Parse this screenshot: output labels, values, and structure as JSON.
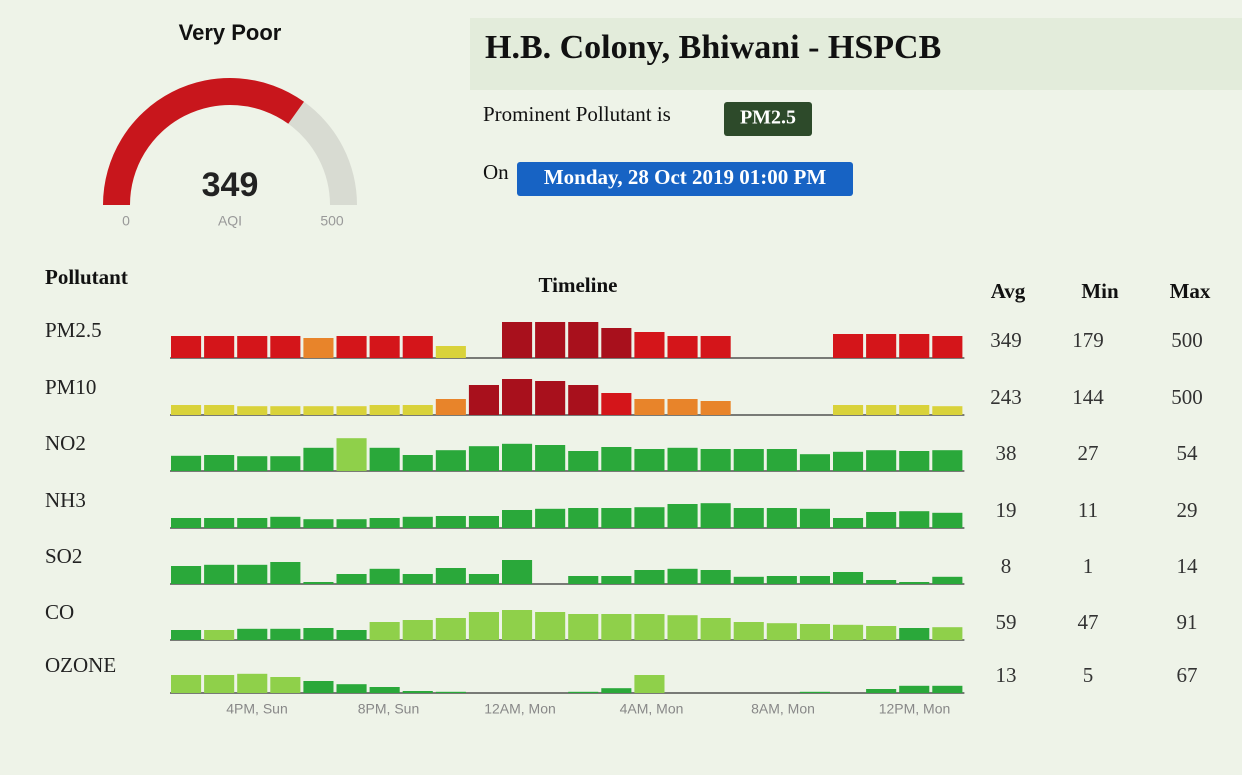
{
  "header": {
    "title": "H.B. Colony, Bhiwani - HSPCB",
    "pollutant_prefix": "Prominent Pollutant is",
    "pollutant": "PM2.5",
    "date_prefix": "On",
    "date": "Monday, 28 Oct 2019 01:00 PM"
  },
  "gauge": {
    "category": "Very Poor",
    "value": 349,
    "label": "AQI",
    "min": 0,
    "max": 500,
    "color": "#c8161c"
  },
  "table": {
    "headers": {
      "pollutant": "Pollutant",
      "timeline": "Timeline",
      "avg": "Avg",
      "min": "Min",
      "max": "Max"
    },
    "time_labels": [
      "4PM, Sun",
      "8PM, Sun",
      "12AM, Mon",
      "4AM, Mon",
      "8AM, Mon",
      "12PM, Mon"
    ],
    "rows": [
      {
        "name": "PM2.5",
        "avg": 349,
        "min": 179,
        "max": 500,
        "values": [
          55,
          55,
          55,
          55,
          50,
          55,
          55,
          55,
          30,
          null,
          90,
          90,
          90,
          75,
          65,
          55,
          55,
          null,
          null,
          null,
          60,
          60,
          60,
          55
        ],
        "colors": [
          "#d4151a",
          "#d4151a",
          "#d4151a",
          "#d4151a",
          "#e8842a",
          "#d4151a",
          "#d4151a",
          "#d4151a",
          "#d9d23a",
          null,
          "#a8101c",
          "#a8101c",
          "#a8101c",
          "#a8101c",
          "#d4151a",
          "#d4151a",
          "#d4151a",
          null,
          null,
          null,
          "#d4151a",
          "#d4151a",
          "#d4151a",
          "#d4151a"
        ]
      },
      {
        "name": "PM10",
        "avg": 243,
        "min": 144,
        "max": 500,
        "values": [
          25,
          25,
          22,
          22,
          22,
          22,
          25,
          25,
          40,
          75,
          90,
          85,
          75,
          55,
          40,
          40,
          35,
          null,
          null,
          null,
          25,
          25,
          25,
          22
        ],
        "colors": [
          "#d9d23a",
          "#d9d23a",
          "#d9d23a",
          "#d9d23a",
          "#d9d23a",
          "#d9d23a",
          "#d9d23a",
          "#d9d23a",
          "#e8842a",
          "#a8101c",
          "#a8101c",
          "#a8101c",
          "#a8101c",
          "#d4151a",
          "#e8842a",
          "#e8842a",
          "#e8842a",
          null,
          null,
          null,
          "#d9d23a",
          "#d9d23a",
          "#d9d23a",
          "#d9d23a"
        ]
      },
      {
        "name": "NO2",
        "avg": 38,
        "min": 27,
        "max": 54,
        "values": [
          38,
          40,
          37,
          37,
          58,
          82,
          58,
          40,
          52,
          62,
          68,
          65,
          50,
          60,
          55,
          58,
          55,
          55,
          55,
          42,
          48,
          52,
          50,
          52
        ],
        "colors": [
          "#2aa83a",
          "#2aa83a",
          "#2aa83a",
          "#2aa83a",
          "#2aa83a",
          "#8fd04a",
          "#2aa83a",
          "#2aa83a",
          "#2aa83a",
          "#2aa83a",
          "#2aa83a",
          "#2aa83a",
          "#2aa83a",
          "#2aa83a",
          "#2aa83a",
          "#2aa83a",
          "#2aa83a",
          "#2aa83a",
          "#2aa83a",
          "#2aa83a",
          "#2aa83a",
          "#2aa83a",
          "#2aa83a",
          "#2aa83a"
        ]
      },
      {
        "name": "NH3",
        "avg": 19,
        "min": 11,
        "max": 29,
        "values": [
          25,
          25,
          25,
          28,
          22,
          22,
          25,
          28,
          30,
          30,
          45,
          48,
          50,
          50,
          52,
          60,
          62,
          50,
          50,
          48,
          25,
          40,
          42,
          38
        ],
        "colors": [
          "#2aa83a",
          "#2aa83a",
          "#2aa83a",
          "#2aa83a",
          "#2aa83a",
          "#2aa83a",
          "#2aa83a",
          "#2aa83a",
          "#2aa83a",
          "#2aa83a",
          "#2aa83a",
          "#2aa83a",
          "#2aa83a",
          "#2aa83a",
          "#2aa83a",
          "#2aa83a",
          "#2aa83a",
          "#2aa83a",
          "#2aa83a",
          "#2aa83a",
          "#2aa83a",
          "#2aa83a",
          "#2aa83a",
          "#2aa83a"
        ]
      },
      {
        "name": "SO2",
        "avg": 8,
        "min": 1,
        "max": 14,
        "values": [
          45,
          48,
          48,
          55,
          5,
          25,
          38,
          25,
          40,
          25,
          60,
          null,
          20,
          20,
          35,
          38,
          35,
          18,
          20,
          20,
          30,
          10,
          5,
          18
        ],
        "colors": [
          "#2aa83a",
          "#2aa83a",
          "#2aa83a",
          "#2aa83a",
          "#2aa83a",
          "#2aa83a",
          "#2aa83a",
          "#2aa83a",
          "#2aa83a",
          "#2aa83a",
          "#2aa83a",
          null,
          "#2aa83a",
          "#2aa83a",
          "#2aa83a",
          "#2aa83a",
          "#2aa83a",
          "#2aa83a",
          "#2aa83a",
          "#2aa83a",
          "#2aa83a",
          "#2aa83a",
          "#2aa83a",
          "#2aa83a"
        ]
      },
      {
        "name": "CO",
        "avg": 59,
        "min": 47,
        "max": 91,
        "values": [
          25,
          25,
          28,
          28,
          30,
          25,
          45,
          50,
          55,
          70,
          75,
          70,
          65,
          65,
          65,
          62,
          55,
          45,
          42,
          40,
          38,
          35,
          30,
          32
        ],
        "colors": [
          "#2aa83a",
          "#8fd04a",
          "#2aa83a",
          "#2aa83a",
          "#2aa83a",
          "#2aa83a",
          "#8fd04a",
          "#8fd04a",
          "#8fd04a",
          "#8fd04a",
          "#8fd04a",
          "#8fd04a",
          "#8fd04a",
          "#8fd04a",
          "#8fd04a",
          "#8fd04a",
          "#8fd04a",
          "#8fd04a",
          "#8fd04a",
          "#8fd04a",
          "#8fd04a",
          "#8fd04a",
          "#2aa83a",
          "#8fd04a"
        ]
      },
      {
        "name": "OZONE",
        "avg": 13,
        "min": 5,
        "max": 67,
        "values": [
          45,
          45,
          48,
          40,
          30,
          22,
          15,
          5,
          3,
          null,
          null,
          null,
          3,
          12,
          45,
          null,
          null,
          null,
          null,
          3,
          null,
          10,
          18,
          18
        ],
        "colors": [
          "#8fd04a",
          "#8fd04a",
          "#8fd04a",
          "#8fd04a",
          "#2aa83a",
          "#2aa83a",
          "#2aa83a",
          "#2aa83a",
          "#2aa83a",
          null,
          null,
          null,
          "#2aa83a",
          "#2aa83a",
          "#8fd04a",
          null,
          null,
          null,
          null,
          "#2aa83a",
          null,
          "#2aa83a",
          "#2aa83a",
          "#2aa83a"
        ]
      }
    ]
  }
}
